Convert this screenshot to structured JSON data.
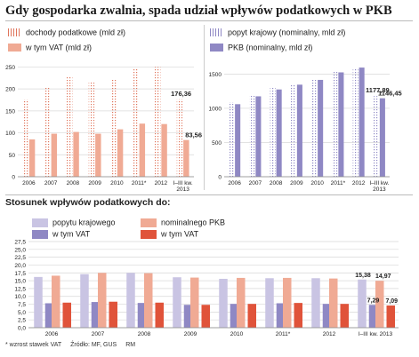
{
  "title": "Gdy gospodarka zwalnia, spada udział wpływów podatkowych w PKB",
  "footer": {
    "note": "* wzrost stawek VAT",
    "source": "Źródło: MF, GUS",
    "credit": "RM"
  },
  "colors": {
    "salmon": "#f0aa94",
    "salmon_dark": "#e0755c",
    "lavender": "#c9c4e3",
    "purple": "#8f88c4",
    "red": "#e0533a",
    "grid": "#d8d8d8"
  },
  "chart_data": [
    {
      "type": "bar",
      "categories": [
        "2006",
        "2007",
        "2008",
        "2009",
        "2010",
        "2011*",
        "2012",
        "I–III kw.\n2013"
      ],
      "series": [
        {
          "name": "dochody podatkowe (mld zł)",
          "style": "dotted",
          "values": [
            176,
            205,
            228,
            216,
            223,
            245,
            250,
            176.36
          ]
        },
        {
          "name": "w tym VAT (mld zł)",
          "style": "solid",
          "values": [
            85,
            98,
            102,
            98,
            108,
            121,
            120,
            83.56
          ]
        }
      ],
      "labels": {
        "7": [
          "176,36",
          "83,56"
        ]
      },
      "yticks": [
        0,
        50,
        100,
        150,
        200,
        250
      ],
      "ylim": [
        0,
        265
      ]
    },
    {
      "type": "bar",
      "categories": [
        "2006",
        "2007",
        "2008",
        "2009",
        "2010",
        "2011*",
        "2012",
        "I–III kw.\n2013"
      ],
      "series": [
        {
          "name": "popyt krajowy (nominalny, mld zł)",
          "style": "dotted",
          "values": [
            1090,
            1200,
            1300,
            1340,
            1430,
            1550,
            1590,
            1177.89
          ]
        },
        {
          "name": "PKB (nominalny, mld zł)",
          "style": "solid",
          "values": [
            1060,
            1175,
            1275,
            1345,
            1415,
            1525,
            1595,
            1146.45
          ]
        }
      ],
      "labels": {
        "7": [
          "1177,89",
          "1146,45"
        ]
      },
      "yticks": [
        0,
        500,
        1000,
        1500
      ],
      "ylim": [
        0,
        1700
      ]
    },
    {
      "type": "bar",
      "title": "Stosunek wpływów podatkowych do:",
      "categories": [
        "2006",
        "2007",
        "2008",
        "2009",
        "2010",
        "2011*",
        "2012",
        "I–III kw. 2013"
      ],
      "series": [
        {
          "name": "popytu krajowego",
          "values": [
            16.2,
            17.1,
            17.5,
            16.1,
            15.6,
            15.8,
            15.8,
            15.38
          ]
        },
        {
          "name": "w tym VAT",
          "values": [
            7.8,
            8.2,
            7.9,
            7.3,
            7.6,
            7.8,
            7.6,
            7.29
          ]
        },
        {
          "name": "nominalnego PKB",
          "values": [
            16.6,
            17.5,
            17.4,
            16.0,
            15.9,
            15.9,
            15.7,
            14.97
          ]
        },
        {
          "name": "w tym VAT",
          "values": [
            8.0,
            8.3,
            8.0,
            7.3,
            7.6,
            7.9,
            7.6,
            7.09
          ]
        }
      ],
      "labels": {
        "7": [
          "15,38",
          "7,29",
          "14,97",
          "7,09"
        ]
      },
      "yticks": [
        0,
        2.5,
        5,
        7.5,
        10,
        12.5,
        15,
        17.5,
        20,
        22.5,
        25,
        27.5
      ],
      "ytick_labels": [
        "0,0",
        "2,5",
        "5,0",
        "7,5",
        "10,0",
        "12,5",
        "15,0",
        "17,5",
        "20,0",
        "22,5",
        "25,0",
        "27,5"
      ],
      "ylim": [
        0,
        27.5
      ]
    }
  ]
}
